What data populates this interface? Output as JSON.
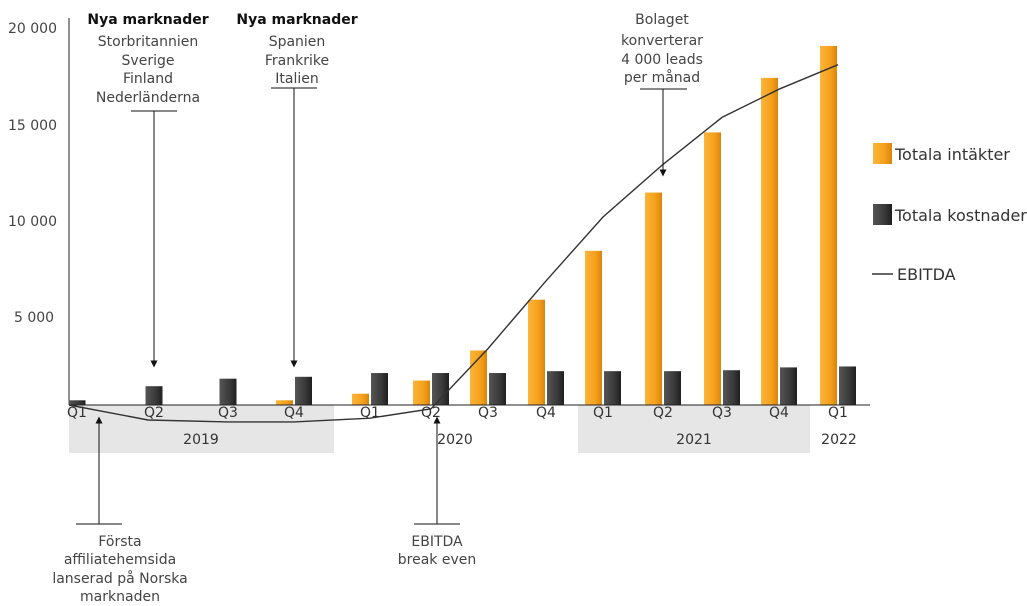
{
  "chart_data": {
    "type": "bar",
    "y_ticks": [
      "20 000",
      "15 000",
      "10 000",
      "5 000"
    ],
    "ylim": [
      0,
      20000
    ],
    "grid": false,
    "legend_position": "right",
    "categories": [
      "Q1",
      "Q2",
      "Q3",
      "Q4",
      "Q1",
      "Q2",
      "Q3",
      "Q4",
      "Q1",
      "Q2",
      "Q3",
      "Q4",
      "Q1"
    ],
    "years": [
      {
        "label": "2019",
        "shaded": true
      },
      {
        "label": "2020",
        "shaded": false
      },
      {
        "label": "2021",
        "shaded": true
      },
      {
        "label": "2022",
        "shaded": false
      }
    ],
    "series": [
      {
        "name": "Totala intäkter",
        "type": "bar",
        "color": "#F5A11C",
        "values": [
          0,
          0,
          0,
          250,
          600,
          1300,
          2900,
          5600,
          8200,
          11300,
          14500,
          17400,
          19100
        ]
      },
      {
        "name": "Totala kostnader",
        "type": "bar",
        "color": "#3a3a3a",
        "values": [
          250,
          1000,
          1400,
          1500,
          1700,
          1700,
          1700,
          1800,
          1800,
          1800,
          1850,
          2000,
          2050
        ]
      },
      {
        "name": "EBITDA",
        "type": "line",
        "color": "#333333",
        "values": [
          0,
          -800,
          -900,
          -900,
          -700,
          -200,
          3000,
          6600,
          10000,
          12800,
          15300,
          16800,
          18100
        ]
      }
    ],
    "annotations": {
      "new_markets_1": {
        "title": "Nya marknader",
        "lines": [
          "Storbritannien",
          "Sverige",
          "Finland",
          "Nederländerna"
        ]
      },
      "new_markets_2": {
        "title": "Nya marknader",
        "lines": [
          "Spanien",
          "Frankrike",
          "Italien"
        ]
      },
      "leads": {
        "lines": [
          "Bolaget",
          "konverterar",
          "4 000 leads",
          "per månad"
        ]
      },
      "first_site": {
        "lines": [
          "Första",
          "affiliatehemsida",
          "lanserad på Norska",
          "marknaden"
        ]
      },
      "break_even": {
        "lines": [
          "EBITDA",
          "break even"
        ]
      }
    }
  }
}
